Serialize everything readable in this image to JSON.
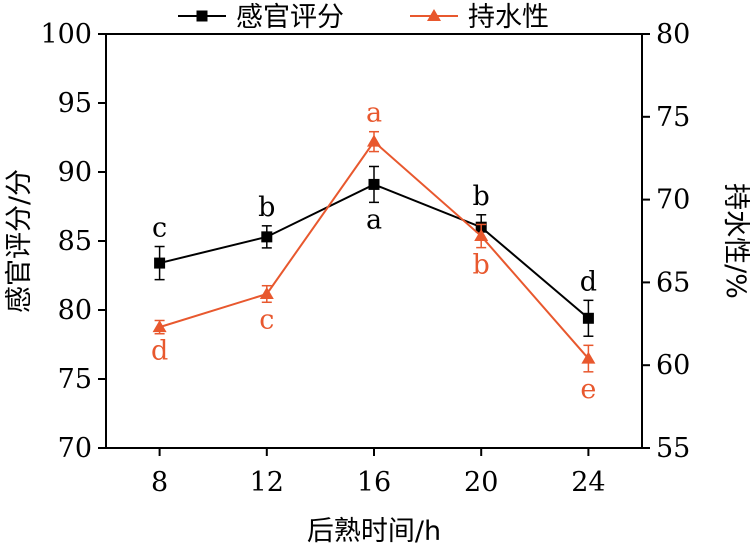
{
  "chart_data": {
    "type": "line",
    "x": [
      8,
      12,
      16,
      20,
      24
    ],
    "xlabel": "后熟时间/h",
    "ylabel_left": "感官评分/分",
    "ylabel_right": "持水性/%",
    "ylim_left": [
      70,
      100
    ],
    "ylim_right": [
      55,
      80
    ],
    "xticks": [
      "8",
      "12",
      "16",
      "20",
      "24"
    ],
    "yticks_left": [
      "70",
      "75",
      "80",
      "85",
      "90",
      "95",
      "100"
    ],
    "yticks_right": [
      "55",
      "60",
      "65",
      "70",
      "75",
      "80"
    ],
    "grid": false,
    "legend_position": "top",
    "series": [
      {
        "name": "感官评分",
        "axis": "left",
        "color": "#000000",
        "marker": "square",
        "values": [
          83.4,
          85.3,
          89.1,
          86.0,
          79.4
        ],
        "errors": [
          1.2,
          0.8,
          1.3,
          0.9,
          1.3
        ],
        "labels": [
          "c",
          "b",
          "a",
          "b",
          "d"
        ],
        "label_positions": [
          "above",
          "above",
          "below",
          "above",
          "above"
        ]
      },
      {
        "name": "持水性",
        "axis": "right",
        "color": "#e8582e",
        "marker": "triangle",
        "values": [
          62.3,
          64.3,
          73.5,
          67.8,
          60.4
        ],
        "errors": [
          0.4,
          0.5,
          0.6,
          0.7,
          0.8
        ],
        "labels": [
          "d",
          "c",
          "a",
          "b",
          "e"
        ],
        "label_positions": [
          "below",
          "below",
          "above",
          "below",
          "below"
        ]
      }
    ]
  }
}
